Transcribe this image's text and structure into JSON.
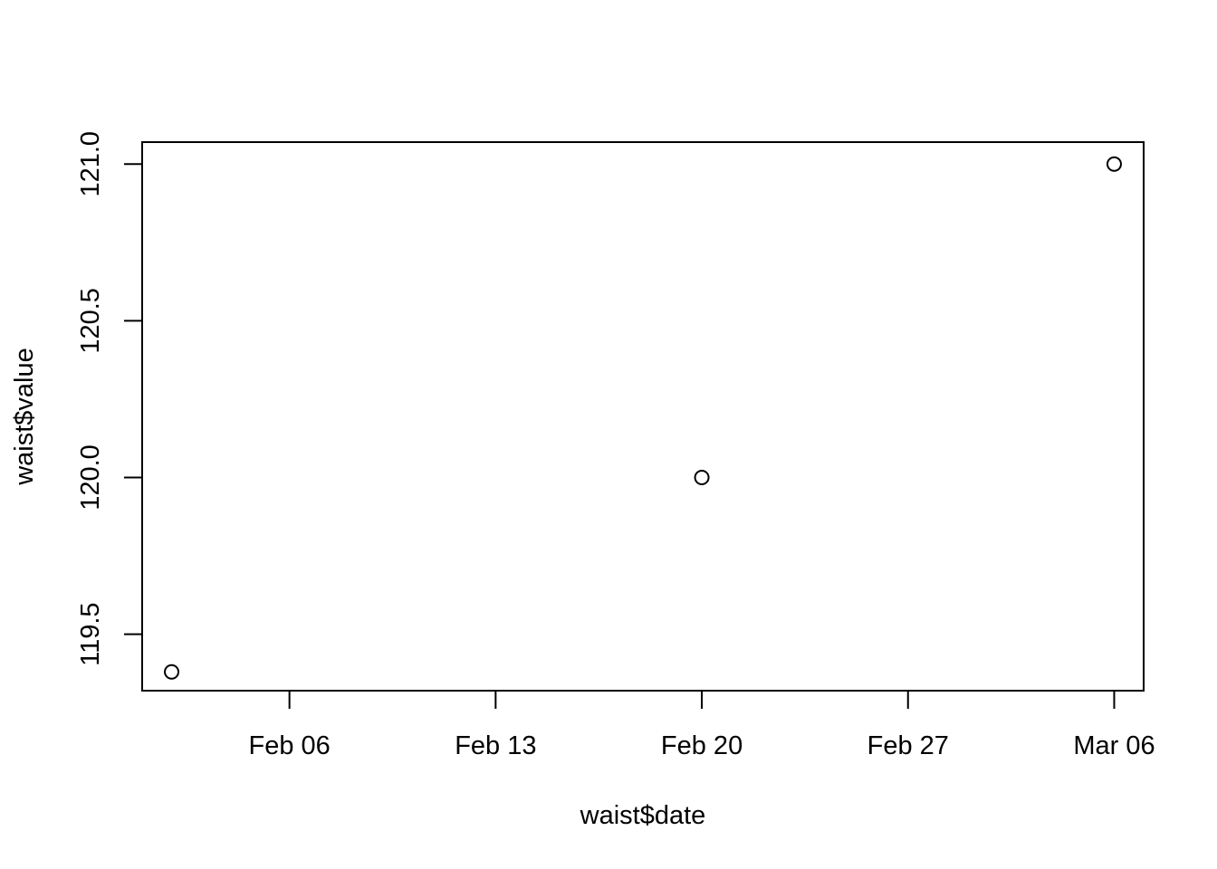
{
  "chart_data": {
    "type": "scatter",
    "title": "",
    "xlabel": "waist$date",
    "ylabel": "waist$value",
    "x_axis_type": "date",
    "x": [
      "2017-02-02",
      "2017-02-20",
      "2017-03-06"
    ],
    "y": [
      119.38,
      120.0,
      121.0
    ],
    "xlim": [
      "2017-02-01",
      "2017-03-07"
    ],
    "ylim": [
      119.32,
      121.07
    ],
    "x_ticks": [
      {
        "value": "2017-02-06",
        "label": "Feb 06"
      },
      {
        "value": "2017-02-13",
        "label": "Feb 13"
      },
      {
        "value": "2017-02-20",
        "label": "Feb 20"
      },
      {
        "value": "2017-02-27",
        "label": "Feb 27"
      },
      {
        "value": "2017-03-06",
        "label": "Mar 06"
      }
    ],
    "y_ticks": [
      {
        "value": 119.5,
        "label": "119.5"
      },
      {
        "value": 120.0,
        "label": "120.0"
      },
      {
        "value": 120.5,
        "label": "120.5"
      },
      {
        "value": 121.0,
        "label": "121.0"
      }
    ],
    "marker": "open-circle",
    "grid": false,
    "legend": "none",
    "color": "#000000"
  }
}
